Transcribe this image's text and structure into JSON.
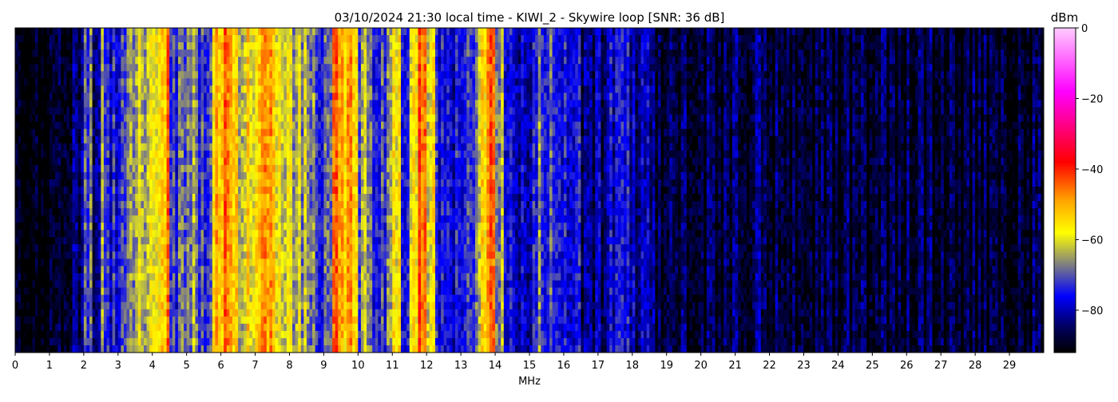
{
  "chart_data": {
    "type": "heatmap",
    "title": "03/10/2024 21:30 local time - KIWI_2 - Skywire loop [SNR: 36 dB]",
    "xlabel": "MHz",
    "xlim": [
      0,
      30
    ],
    "xticks": [
      "0",
      "1",
      "2",
      "3",
      "4",
      "5",
      "6",
      "7",
      "8",
      "9",
      "10",
      "11",
      "12",
      "13",
      "14",
      "15",
      "16",
      "17",
      "18",
      "19",
      "20",
      "21",
      "22",
      "23",
      "24",
      "25",
      "26",
      "27",
      "28",
      "29"
    ],
    "colorbar": {
      "label": "dBm",
      "range": [
        -92,
        0
      ],
      "ticks": [
        "0",
        "−20",
        "−40",
        "−60",
        "−80"
      ],
      "tick_values": [
        0,
        -20,
        -40,
        -60,
        -80
      ],
      "colormap": [
        {
          "v": -92,
          "c": "#000000"
        },
        {
          "v": -85,
          "c": "#00005a"
        },
        {
          "v": -76,
          "c": "#0000ff"
        },
        {
          "v": -67,
          "c": "#808080"
        },
        {
          "v": -58,
          "c": "#ffff00"
        },
        {
          "v": -49,
          "c": "#ffa500"
        },
        {
          "v": -38,
          "c": "#ff0000"
        },
        {
          "v": -28,
          "c": "#ff0080"
        },
        {
          "v": -18,
          "c": "#ff00ff"
        },
        {
          "v": 0,
          "c": "#ffccff"
        }
      ]
    },
    "band_width_mhz": 0.25,
    "band_levels_dbm": [
      -91,
      -91,
      -91,
      -91,
      -91,
      -91,
      -86,
      -84,
      -68,
      -80,
      -68,
      -76,
      -74,
      -66,
      -60,
      -62,
      -62,
      -50,
      -72,
      -66,
      -64,
      -72,
      -70,
      -52,
      -48,
      -56,
      -60,
      -56,
      -50,
      -52,
      -56,
      -58,
      -62,
      -64,
      -66,
      -76,
      -72,
      -48,
      -50,
      -52,
      -66,
      -72,
      -74,
      -70,
      -58,
      -74,
      -54,
      -46,
      -56,
      -74,
      -76,
      -76,
      -75,
      -72,
      -58,
      -44,
      -66,
      -72,
      -78,
      -78,
      -76,
      -70,
      -74,
      -74,
      -76,
      -72,
      -82,
      -82,
      -82,
      -76,
      -74,
      -78,
      -82,
      -82,
      -85,
      -86,
      -87,
      -87,
      -87,
      -87,
      -87,
      -87,
      -87,
      -87,
      -83,
      -86,
      -86,
      -86,
      -88,
      -88,
      -88,
      -88,
      -88,
      -88,
      -88,
      -88,
      -88,
      -88,
      -88,
      -88,
      -88,
      -88,
      -88,
      -88,
      -88,
      -88,
      -88,
      -88,
      -88,
      -88,
      -88,
      -88,
      -88,
      -88,
      -88,
      -88,
      -88,
      -88,
      -88,
      -88
    ]
  }
}
